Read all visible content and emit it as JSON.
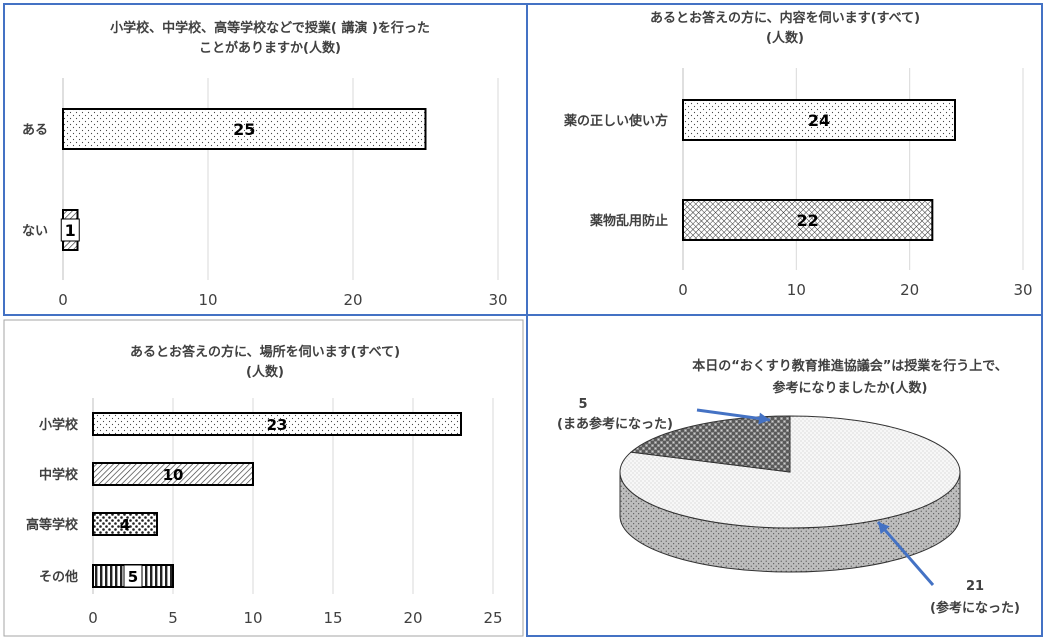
{
  "chart_data": [
    {
      "type": "bar",
      "orientation": "horizontal",
      "title_lines": [
        "小学校、中学校、高等学校などで授業( 講演 )を行った",
        "ことがありますか(人数)"
      ],
      "categories": [
        "ある",
        "ない"
      ],
      "values": [
        25,
        1
      ],
      "data_labels": [
        "25",
        "1"
      ],
      "xlim": [
        0,
        30
      ],
      "x_ticks": [
        "0",
        "10",
        "20",
        "30"
      ],
      "grid": true,
      "fill_patterns": [
        "dots",
        "hatch"
      ]
    },
    {
      "type": "bar",
      "orientation": "horizontal",
      "title_lines": [
        "あるとお答えの方に、内容を伺います(すべて)",
        "(人数)"
      ],
      "categories": [
        "薬の正しい使い方",
        "薬物乱用防止"
      ],
      "values": [
        24,
        22
      ],
      "data_labels": [
        "24",
        "22"
      ],
      "xlim": [
        0,
        30
      ],
      "x_ticks": [
        "0",
        "10",
        "20",
        "30"
      ],
      "grid": true,
      "fill_patterns": [
        "dots",
        "crosshatch"
      ]
    },
    {
      "type": "bar",
      "orientation": "horizontal",
      "title_lines": [
        "あるとお答えの方に、場所を伺います(すべて)",
        "(人数)"
      ],
      "categories": [
        "小学校",
        "中学校",
        "高等学校",
        "その他"
      ],
      "values": [
        23,
        10,
        4,
        5
      ],
      "data_labels": [
        "23",
        "10",
        "4",
        "5"
      ],
      "xlim": [
        0,
        25
      ],
      "x_ticks": [
        "0",
        "5",
        "10",
        "15",
        "20",
        "25"
      ],
      "grid": true,
      "fill_patterns": [
        "dots",
        "hatch",
        "bigdots",
        "vstripes"
      ]
    },
    {
      "type": "pie",
      "style": "3d",
      "title_lines": [
        "本日の“おくすり教育推進協議会”は授業を行う上で、",
        "参考になりましたか(人数)"
      ],
      "slices": [
        {
          "value": 21,
          "label_value": "21",
          "label_name": "(参考になった)",
          "pattern": "finedots"
        },
        {
          "value": 5,
          "label_value": "5",
          "label_name": "(まあ参考になった)",
          "pattern": "checker"
        }
      ],
      "legend": "none"
    }
  ],
  "colors": {
    "panel_border": "#4472c4",
    "arrow": "#4472c4",
    "bar_stroke": "#000000",
    "grid": "#d9d9d9",
    "text": "#404040"
  }
}
